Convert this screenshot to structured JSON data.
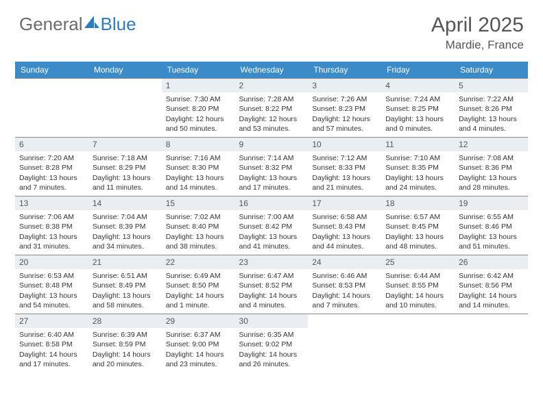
{
  "brand": {
    "part1": "General",
    "part2": "Blue"
  },
  "title": "April 2025",
  "location": "Mardie, France",
  "dayHeaders": [
    "Sunday",
    "Monday",
    "Tuesday",
    "Wednesday",
    "Thursday",
    "Friday",
    "Saturday"
  ],
  "colors": {
    "headerBg": "#3b8bc9",
    "dayBarBg": "#e9eef2",
    "text": "#333333",
    "brandGray": "#6b6b6b",
    "brandBlue": "#2f7bbf",
    "border": "#888888"
  },
  "fonts": {
    "title_pt": 30,
    "location_pt": 17,
    "dayheader_pt": 12,
    "daynum_pt": 12,
    "cell_pt": 10.5
  },
  "leadingBlanks": 2,
  "days": [
    {
      "n": 1,
      "sunrise": "7:30 AM",
      "sunset": "8:20 PM",
      "daylight": "12 hours and 50 minutes."
    },
    {
      "n": 2,
      "sunrise": "7:28 AM",
      "sunset": "8:22 PM",
      "daylight": "12 hours and 53 minutes."
    },
    {
      "n": 3,
      "sunrise": "7:26 AM",
      "sunset": "8:23 PM",
      "daylight": "12 hours and 57 minutes."
    },
    {
      "n": 4,
      "sunrise": "7:24 AM",
      "sunset": "8:25 PM",
      "daylight": "13 hours and 0 minutes."
    },
    {
      "n": 5,
      "sunrise": "7:22 AM",
      "sunset": "8:26 PM",
      "daylight": "13 hours and 4 minutes."
    },
    {
      "n": 6,
      "sunrise": "7:20 AM",
      "sunset": "8:28 PM",
      "daylight": "13 hours and 7 minutes."
    },
    {
      "n": 7,
      "sunrise": "7:18 AM",
      "sunset": "8:29 PM",
      "daylight": "13 hours and 11 minutes."
    },
    {
      "n": 8,
      "sunrise": "7:16 AM",
      "sunset": "8:30 PM",
      "daylight": "13 hours and 14 minutes."
    },
    {
      "n": 9,
      "sunrise": "7:14 AM",
      "sunset": "8:32 PM",
      "daylight": "13 hours and 17 minutes."
    },
    {
      "n": 10,
      "sunrise": "7:12 AM",
      "sunset": "8:33 PM",
      "daylight": "13 hours and 21 minutes."
    },
    {
      "n": 11,
      "sunrise": "7:10 AM",
      "sunset": "8:35 PM",
      "daylight": "13 hours and 24 minutes."
    },
    {
      "n": 12,
      "sunrise": "7:08 AM",
      "sunset": "8:36 PM",
      "daylight": "13 hours and 28 minutes."
    },
    {
      "n": 13,
      "sunrise": "7:06 AM",
      "sunset": "8:38 PM",
      "daylight": "13 hours and 31 minutes."
    },
    {
      "n": 14,
      "sunrise": "7:04 AM",
      "sunset": "8:39 PM",
      "daylight": "13 hours and 34 minutes."
    },
    {
      "n": 15,
      "sunrise": "7:02 AM",
      "sunset": "8:40 PM",
      "daylight": "13 hours and 38 minutes."
    },
    {
      "n": 16,
      "sunrise": "7:00 AM",
      "sunset": "8:42 PM",
      "daylight": "13 hours and 41 minutes."
    },
    {
      "n": 17,
      "sunrise": "6:58 AM",
      "sunset": "8:43 PM",
      "daylight": "13 hours and 44 minutes."
    },
    {
      "n": 18,
      "sunrise": "6:57 AM",
      "sunset": "8:45 PM",
      "daylight": "13 hours and 48 minutes."
    },
    {
      "n": 19,
      "sunrise": "6:55 AM",
      "sunset": "8:46 PM",
      "daylight": "13 hours and 51 minutes."
    },
    {
      "n": 20,
      "sunrise": "6:53 AM",
      "sunset": "8:48 PM",
      "daylight": "13 hours and 54 minutes."
    },
    {
      "n": 21,
      "sunrise": "6:51 AM",
      "sunset": "8:49 PM",
      "daylight": "13 hours and 58 minutes."
    },
    {
      "n": 22,
      "sunrise": "6:49 AM",
      "sunset": "8:50 PM",
      "daylight": "14 hours and 1 minute."
    },
    {
      "n": 23,
      "sunrise": "6:47 AM",
      "sunset": "8:52 PM",
      "daylight": "14 hours and 4 minutes."
    },
    {
      "n": 24,
      "sunrise": "6:46 AM",
      "sunset": "8:53 PM",
      "daylight": "14 hours and 7 minutes."
    },
    {
      "n": 25,
      "sunrise": "6:44 AM",
      "sunset": "8:55 PM",
      "daylight": "14 hours and 10 minutes."
    },
    {
      "n": 26,
      "sunrise": "6:42 AM",
      "sunset": "8:56 PM",
      "daylight": "14 hours and 14 minutes."
    },
    {
      "n": 27,
      "sunrise": "6:40 AM",
      "sunset": "8:58 PM",
      "daylight": "14 hours and 17 minutes."
    },
    {
      "n": 28,
      "sunrise": "6:39 AM",
      "sunset": "8:59 PM",
      "daylight": "14 hours and 20 minutes."
    },
    {
      "n": 29,
      "sunrise": "6:37 AM",
      "sunset": "9:00 PM",
      "daylight": "14 hours and 23 minutes."
    },
    {
      "n": 30,
      "sunrise": "6:35 AM",
      "sunset": "9:02 PM",
      "daylight": "14 hours and 26 minutes."
    }
  ],
  "labels": {
    "sunrise": "Sunrise: ",
    "sunset": "Sunset: ",
    "daylight": "Daylight: "
  }
}
